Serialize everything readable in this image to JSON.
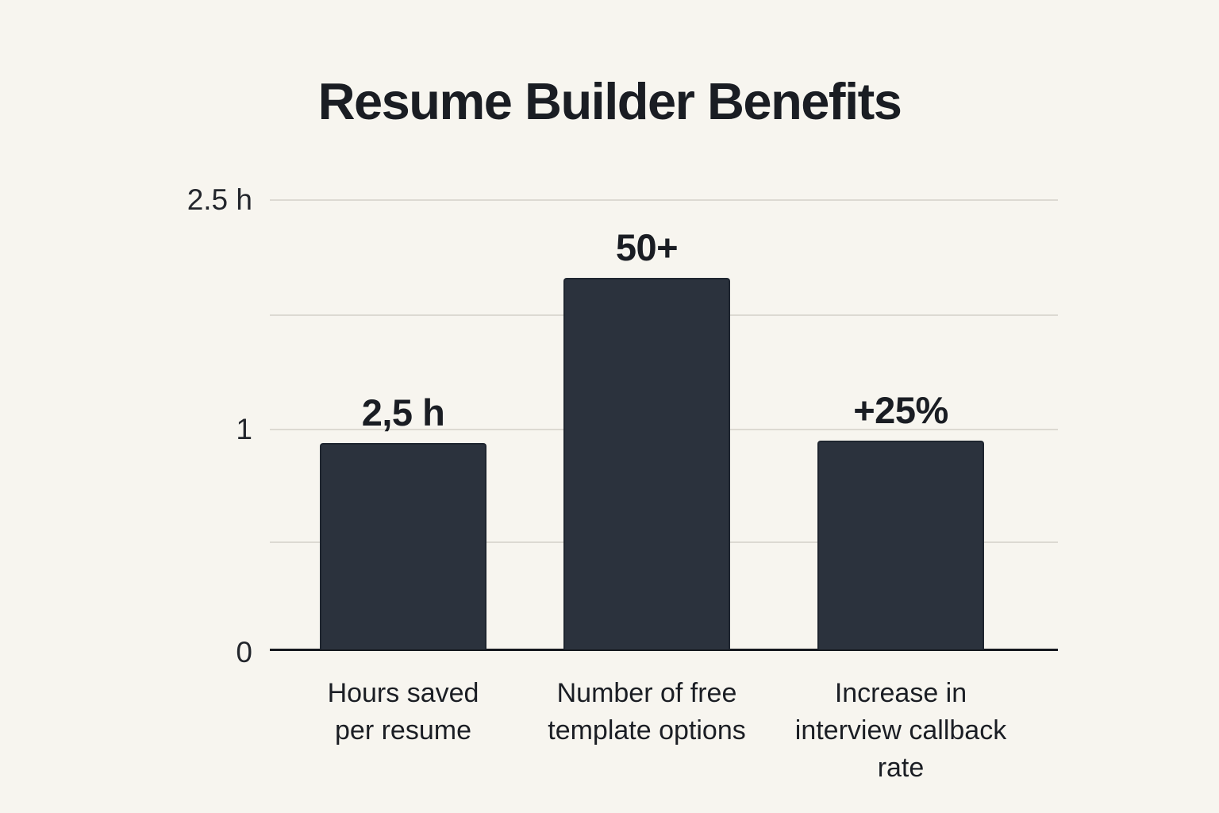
{
  "page": {
    "title": "Resume Builder Benefits"
  },
  "colors": {
    "background": "#f7f5ef",
    "bar_fill": "#2b323d",
    "bar_border": "#1f2630",
    "text_primary": "#1a1d23",
    "gridline": "#dcd9d2",
    "axis_line": "#15181e"
  },
  "chart_data": {
    "type": "bar",
    "title": "Resume Builder Benefits",
    "xlabel": "",
    "ylabel": "",
    "grid": "horizontal-only",
    "legend": "none",
    "categories": [
      "Hours saved per resume",
      "Number of free template options",
      "Increase in interview callback rate"
    ],
    "bars": [
      {
        "category_lines": [
          "Hours saved",
          "per resume"
        ],
        "value_label": "2,5 h",
        "value": 2.5,
        "bar_height_axis_units": 0.94
      },
      {
        "category_lines": [
          "Number of free",
          "template options"
        ],
        "value_label": "50+",
        "value": 50,
        "bar_height_axis_units": 1.69
      },
      {
        "category_lines": [
          "Increase in",
          "interview callback",
          "rate"
        ],
        "value_label": "+25%",
        "value": 25,
        "bar_height_axis_units": 0.95
      }
    ],
    "y_axis": {
      "ticks": [
        {
          "label": "2.5 h",
          "at": "grid0"
        },
        {
          "label": "1",
          "at": "grid2"
        },
        {
          "label": "0",
          "at": "axis"
        }
      ]
    }
  }
}
